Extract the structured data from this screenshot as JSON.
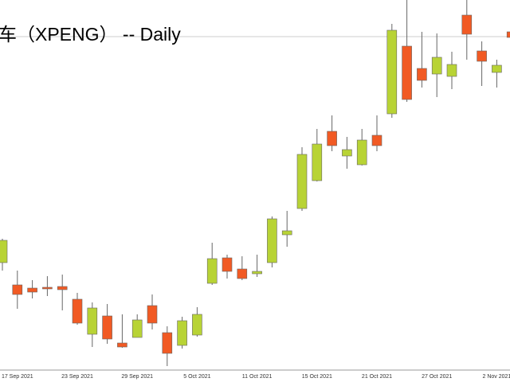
{
  "chart_data": {
    "type": "candlestick",
    "title": "车（XPENG） -- Daily",
    "categories": [
      null,
      "17 Sep 2021",
      null,
      null,
      null,
      "23 Sep 2021",
      null,
      null,
      null,
      "29 Sep 2021",
      null,
      null,
      null,
      "5 Oct 2021",
      null,
      null,
      null,
      "11 Oct 2021",
      null,
      null,
      null,
      "15 Oct 2021",
      null,
      null,
      null,
      "21 Oct 2021",
      null,
      null,
      null,
      "27 Oct 2021",
      null,
      null,
      null,
      "2 Nov 2021",
      null
    ],
    "open": [
      35.75,
      34.35,
      34.15,
      34.2,
      34.25,
      33.45,
      31.25,
      32.4,
      30.7,
      31.05,
      33.05,
      31.35,
      30.55,
      31.2,
      34.45,
      36.05,
      35.35,
      35.05,
      35.75,
      37.5,
      39.15,
      40.9,
      44,
      42.45,
      41.9,
      43.75,
      45.1,
      49.35,
      47.95,
      47.6,
      47.45,
      51.3,
      49.05,
      47.7,
      50.25
    ],
    "high": [
      37.25,
      35.25,
      34.65,
      34.9,
      35,
      33.85,
      33.25,
      33.15,
      32.5,
      32.5,
      33.75,
      31.75,
      32.35,
      32.95,
      37,
      36.25,
      36.15,
      36.25,
      38.65,
      39,
      43,
      44.15,
      45,
      43.65,
      44.15,
      45,
      50.75,
      52.25,
      50.25,
      50.15,
      49,
      52.25,
      49.65,
      48.5,
      50.5
    ],
    "low": [
      35.25,
      32.85,
      33.5,
      33.65,
      32.75,
      31.85,
      30.45,
      30.65,
      30.4,
      31.05,
      31.55,
      29.25,
      30.35,
      31.1,
      34.35,
      34.75,
      34.65,
      34.85,
      35.45,
      36.75,
      39,
      40.85,
      42.75,
      41.65,
      41.85,
      42.75,
      44.85,
      45.85,
      46.75,
      46.15,
      46.65,
      48.5,
      46.85,
      46.75,
      49.75
    ],
    "close": [
      37.15,
      33.75,
      33.9,
      34.1,
      34.05,
      31.95,
      32.9,
      30.95,
      30.45,
      32.15,
      31.95,
      30.05,
      32.1,
      32.5,
      36,
      35.2,
      34.75,
      35.2,
      38.5,
      37.75,
      42.55,
      43.2,
      43.1,
      42.85,
      43.45,
      43.1,
      50.35,
      46,
      47.2,
      48.65,
      48.2,
      50.1,
      48.4,
      48.15,
      49.9
    ],
    "up_color": "#b8d335",
    "down_color": "#f15a24",
    "last_price": 49.95,
    "ylim": [
      29,
      52.25
    ]
  }
}
